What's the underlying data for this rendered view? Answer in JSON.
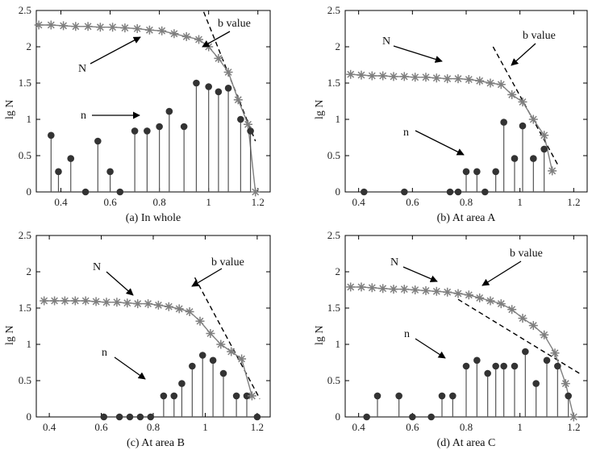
{
  "colors": {
    "axis": "#000000",
    "n_series": "#333333",
    "N_series": "#7f7f7f",
    "fit": "#000000"
  },
  "chart_data": [
    {
      "type": "scatter",
      "caption": "(a) In whole",
      "ylabel": "lg N",
      "xlim": [
        0.3,
        1.25
      ],
      "ylim": [
        0,
        2.5
      ],
      "xticks": [
        0.4,
        0.6,
        0.8,
        1,
        1.2
      ],
      "xtick_labels": [
        "0.4",
        "0.6",
        "0.8",
        "1",
        "1.2"
      ],
      "yticks": [
        0,
        0.5,
        1,
        1.5,
        2,
        2.5
      ],
      "ytick_labels": [
        "0",
        "0.5",
        "1",
        "1.5",
        "2",
        "2.5"
      ],
      "annotations": {
        "N": "N",
        "n": "n",
        "b": "b value"
      },
      "series": [
        {
          "name": "N",
          "marker": "asterisk",
          "curve": true,
          "x": [
            0.31,
            0.36,
            0.41,
            0.46,
            0.51,
            0.56,
            0.61,
            0.66,
            0.71,
            0.76,
            0.81,
            0.86,
            0.91,
            0.96,
            1.0,
            1.04,
            1.08,
            1.12,
            1.16,
            1.19
          ],
          "y": [
            2.3,
            2.3,
            2.29,
            2.28,
            2.28,
            2.27,
            2.27,
            2.26,
            2.25,
            2.23,
            2.22,
            2.18,
            2.14,
            2.1,
            2.0,
            1.84,
            1.65,
            1.27,
            0.93,
            0.0
          ]
        },
        {
          "name": "n",
          "marker": "stem",
          "x": [
            0.36,
            0.39,
            0.44,
            0.5,
            0.55,
            0.6,
            0.64,
            0.7,
            0.75,
            0.8,
            0.84,
            0.9,
            0.95,
            1.0,
            1.04,
            1.08,
            1.13,
            1.17
          ],
          "y": [
            0.78,
            0.28,
            0.46,
            0.0,
            0.7,
            0.28,
            0.0,
            0.84,
            0.84,
            0.9,
            1.11,
            0.9,
            1.5,
            1.45,
            1.38,
            1.43,
            1.0,
            0.84
          ]
        },
        {
          "name": "b value fit",
          "marker": "dashed-line",
          "x": [
            0.98,
            1.19
          ],
          "y": [
            2.48,
            0.7
          ]
        }
      ]
    },
    {
      "type": "scatter",
      "caption": "(b) At area A",
      "ylabel": "lg N",
      "xlim": [
        0.35,
        1.25
      ],
      "ylim": [
        0,
        2.5
      ],
      "xticks": [
        0.4,
        0.6,
        0.8,
        1,
        1.2
      ],
      "xtick_labels": [
        "0.4",
        "0.6",
        "0.8",
        "1",
        "1.2"
      ],
      "yticks": [
        0,
        0.5,
        1,
        1.5,
        2,
        2.5
      ],
      "ytick_labels": [
        "0",
        "0.5",
        "1",
        "1.5",
        "2",
        "2.5"
      ],
      "annotations": {
        "N": "N",
        "n": "n",
        "b": "b value"
      },
      "series": [
        {
          "name": "N",
          "marker": "asterisk",
          "curve": true,
          "x": [
            0.37,
            0.41,
            0.45,
            0.49,
            0.53,
            0.57,
            0.61,
            0.65,
            0.69,
            0.73,
            0.77,
            0.81,
            0.85,
            0.89,
            0.93,
            0.97,
            1.01,
            1.05,
            1.09,
            1.12
          ],
          "y": [
            1.62,
            1.61,
            1.6,
            1.6,
            1.59,
            1.59,
            1.58,
            1.58,
            1.57,
            1.56,
            1.56,
            1.55,
            1.53,
            1.5,
            1.48,
            1.34,
            1.24,
            1.0,
            0.78,
            0.29
          ]
        },
        {
          "name": "n",
          "marker": "stem",
          "x": [
            0.42,
            0.57,
            0.74,
            0.77,
            0.8,
            0.84,
            0.87,
            0.91,
            0.94,
            0.98,
            1.01,
            1.05,
            1.09
          ],
          "y": [
            0.0,
            0.0,
            0.0,
            0.0,
            0.28,
            0.28,
            0.0,
            0.28,
            0.96,
            0.46,
            0.91,
            0.46,
            0.59
          ]
        },
        {
          "name": "b value fit",
          "marker": "dashed-line",
          "x": [
            0.9,
            1.14
          ],
          "y": [
            2.0,
            0.38
          ]
        }
      ]
    },
    {
      "type": "scatter",
      "caption": "(c) At area B",
      "ylabel": "lg N",
      "xlim": [
        0.35,
        1.25
      ],
      "ylim": [
        0,
        2.5
      ],
      "xticks": [
        0.4,
        0.6,
        0.8,
        1,
        1.2
      ],
      "xtick_labels": [
        "0.4",
        "0.6",
        "0.8",
        "1",
        "1.2"
      ],
      "yticks": [
        0,
        0.5,
        1,
        1.5,
        2,
        2.5
      ],
      "ytick_labels": [
        "0",
        "0.5",
        "1",
        "1.5",
        "2",
        "2.5"
      ],
      "annotations": {
        "N": "N",
        "n": "n",
        "b": "b value"
      },
      "series": [
        {
          "name": "N",
          "marker": "asterisk",
          "curve": true,
          "x": [
            0.38,
            0.42,
            0.46,
            0.5,
            0.54,
            0.58,
            0.62,
            0.66,
            0.7,
            0.74,
            0.78,
            0.82,
            0.86,
            0.9,
            0.94,
            0.98,
            1.02,
            1.06,
            1.1,
            1.14,
            1.18
          ],
          "y": [
            1.6,
            1.6,
            1.6,
            1.6,
            1.6,
            1.59,
            1.58,
            1.58,
            1.57,
            1.56,
            1.56,
            1.54,
            1.52,
            1.49,
            1.45,
            1.32,
            1.15,
            1.0,
            0.9,
            0.8,
            0.29
          ]
        },
        {
          "name": "n",
          "marker": "stem",
          "x": [
            0.61,
            0.67,
            0.71,
            0.75,
            0.79,
            0.84,
            0.88,
            0.91,
            0.95,
            0.99,
            1.03,
            1.07,
            1.12,
            1.16,
            1.2
          ],
          "y": [
            0.0,
            0.0,
            0.0,
            0.0,
            0.0,
            0.29,
            0.29,
            0.46,
            0.7,
            0.85,
            0.78,
            0.6,
            0.29,
            0.29,
            0.0
          ]
        },
        {
          "name": "b value fit",
          "marker": "dashed-line",
          "x": [
            0.96,
            1.21
          ],
          "y": [
            1.92,
            0.25
          ]
        }
      ]
    },
    {
      "type": "scatter",
      "caption": "(d) At area C",
      "ylabel": "lg N",
      "xlim": [
        0.35,
        1.25
      ],
      "ylim": [
        0,
        2.5
      ],
      "xticks": [
        0.4,
        0.6,
        0.8,
        1,
        1.2
      ],
      "xtick_labels": [
        "0.4",
        "0.6",
        "0.8",
        "1",
        "1.2"
      ],
      "yticks": [
        0,
        0.5,
        1,
        1.5,
        2,
        2.5
      ],
      "ytick_labels": [
        "0",
        "0.5",
        "1",
        "1.5",
        "2",
        "2.5"
      ],
      "annotations": {
        "N": "N",
        "n": "n",
        "b": "b value"
      },
      "series": [
        {
          "name": "N",
          "marker": "asterisk",
          "curve": true,
          "x": [
            0.37,
            0.41,
            0.45,
            0.49,
            0.53,
            0.57,
            0.61,
            0.65,
            0.69,
            0.73,
            0.77,
            0.81,
            0.85,
            0.89,
            0.93,
            0.97,
            1.01,
            1.05,
            1.09,
            1.13,
            1.17,
            1.2
          ],
          "y": [
            1.79,
            1.79,
            1.78,
            1.77,
            1.76,
            1.76,
            1.75,
            1.74,
            1.73,
            1.72,
            1.7,
            1.68,
            1.64,
            1.6,
            1.56,
            1.48,
            1.36,
            1.26,
            1.13,
            0.88,
            0.46,
            0.0
          ]
        },
        {
          "name": "n",
          "marker": "stem",
          "x": [
            0.43,
            0.47,
            0.55,
            0.6,
            0.67,
            0.71,
            0.75,
            0.8,
            0.84,
            0.88,
            0.91,
            0.94,
            0.98,
            1.02,
            1.06,
            1.1,
            1.14,
            1.18
          ],
          "y": [
            0.0,
            0.29,
            0.29,
            0.0,
            0.0,
            0.29,
            0.29,
            0.7,
            0.78,
            0.6,
            0.7,
            0.7,
            0.7,
            0.9,
            0.46,
            0.78,
            0.7,
            0.29
          ]
        },
        {
          "name": "b value fit",
          "marker": "dashed-line",
          "x": [
            0.77,
            1.23
          ],
          "y": [
            1.62,
            0.58
          ]
        }
      ]
    }
  ]
}
